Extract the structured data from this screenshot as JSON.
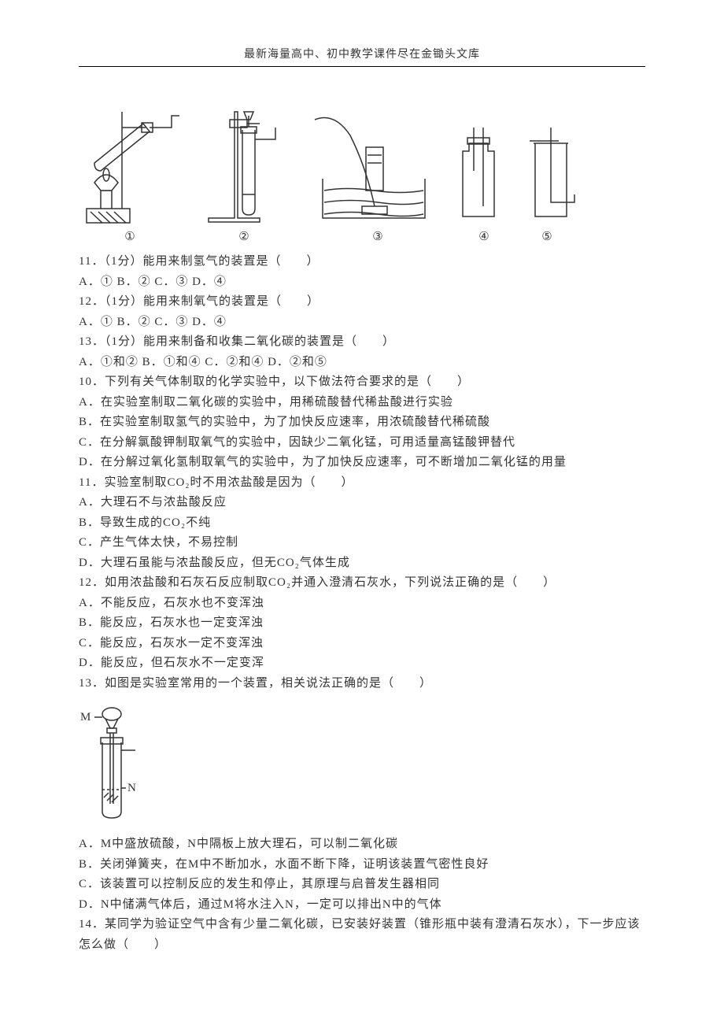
{
  "header": "最新海量高中、初中教学课件尽在金锄头文库",
  "diagramLabels": [
    "①",
    "②",
    "③",
    "④",
    "⑤"
  ],
  "labelWidths": [
    130,
    160,
    180,
    90,
    70
  ],
  "lines": [
    "11．（1分）能用来制氢气的装置是（　　）",
    "A．① B．② C．③ D．④",
    "12．（1分）能用来制氧气的装置是（　　）",
    "A．① B．② C．③ D．④",
    "13．（1分）能用来制备和收集二氧化碳的装置是（　　）",
    "A．①和② B．①和④ C．②和④ D．②和⑤",
    "10．下列有关气体制取的化学实验中，以下做法符合要求的是（　　）",
    "A．在实验室制取二氧化碳的实验中，用稀硫酸替代稀盐酸进行实验",
    "B．在实验室制取氢气的实验中，为了加快反应速率，用浓硫酸替代稀硫酸",
    "C．在分解氯酸钾制取氧气的实验中，因缺少二氧化锰，可用适量高锰酸钾替代",
    "D．在分解过氧化氢制取氧气的实验中，为了加快反应速率，可不断增加二氧化锰的用量",
    "11．实验室制取CO₂时不用浓盐酸是因为（　　）",
    "A．大理石不与浓盐酸反应",
    "B．导致生成的CO₂不纯",
    "C．产生气体太快，不易控制",
    "D．大理石虽能与浓盐酸反应，但无CO₂气体生成",
    "12．如用浓盐酸和石灰石反应制取CO₂并通入澄清石灰水，下列说法正确的是（　　）",
    "A．不能反应，石灰水也不变浑浊",
    "B．能反应，石灰水也一定变浑浊",
    "C．能反应，石灰水一定不变浑浊",
    "D．能反应，但石灰水不一定变浑",
    "13．如图是实验室常用的一个装置，相关说法正确的是（　　）"
  ],
  "lines2": [
    "A．M中盛放硫酸，N中隔板上放大理石，可以制二氧化碳",
    "B．关闭弹簧夹，在M中不断加水，水面不断下降，证明该装置气密性良好",
    "C．该装置可以控制反应的发生和停止，其原理与启普发生器相同",
    "D．N中储满气体后，通过M将水注入N，一定可以排出N中的气体",
    "14．某同学为验证空气中含有少量二氧化碳，已安装好装置（锥形瓶中装有澄清石灰水），下一步应该怎么做（　　）"
  ],
  "colors": {
    "stroke": "#333333",
    "text": "#333333",
    "bg": "#ffffff"
  }
}
